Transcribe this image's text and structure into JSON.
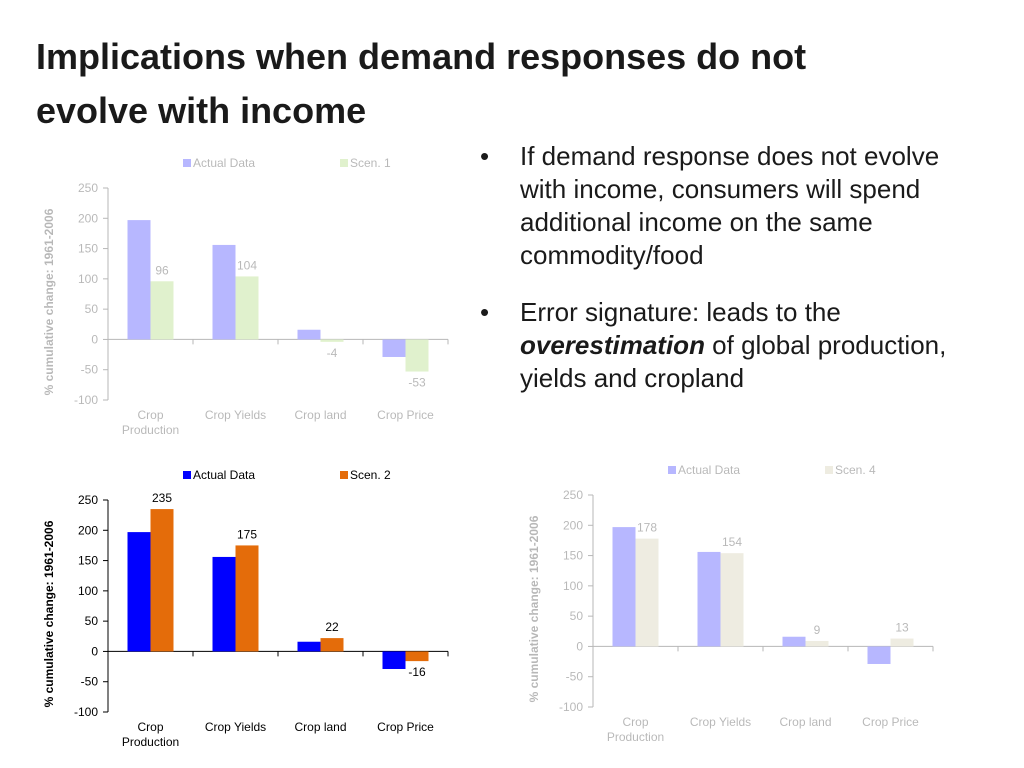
{
  "slide": {
    "title_line1": "Implications when demand responses do not",
    "title_line2": "evolve with income",
    "bullets": [
      "If demand response does not evolve with income, consumers will spend additional income on the same commodity/food",
      {
        "before": "Error signature: leads to the ",
        "emphasis": "overestimation",
        "after": " of global production, yields and cropland"
      }
    ]
  },
  "chart_data": [
    {
      "type": "bar",
      "categories": [
        [
          "Crop",
          "Production"
        ],
        [
          "Crop Yields"
        ],
        [
          "Crop land"
        ],
        [
          "Crop Price"
        ]
      ],
      "series": [
        {
          "name": "Actual Data",
          "values": [
            197,
            156,
            16,
            -29
          ],
          "color": "#0000ff"
        },
        {
          "name": "Scen. 1",
          "values": [
            96,
            104,
            -4,
            -53
          ],
          "color": "#92d050",
          "labels": [
            "96",
            "104",
            "-4",
            "-53"
          ]
        }
      ],
      "ylabel": "% cumulative change: 1961-2006",
      "ylim": [
        -100,
        250
      ],
      "yticks": [
        250,
        200,
        150,
        100,
        50,
        0,
        -50,
        -100
      ],
      "legend": "top",
      "faded": true
    },
    {
      "type": "bar",
      "categories": [
        [
          "Crop",
          "Production"
        ],
        [
          "Crop Yields"
        ],
        [
          "Crop land"
        ],
        [
          "Crop Price"
        ]
      ],
      "series": [
        {
          "name": "Actual Data",
          "values": [
            197,
            156,
            16,
            -29
          ],
          "color": "#0000ff"
        },
        {
          "name": "Scen. 2",
          "values": [
            235,
            175,
            22,
            -16
          ],
          "color": "#e46c0a",
          "labels": [
            "235",
            "175",
            "22",
            "-16"
          ]
        }
      ],
      "ylabel": "% cumulative change: 1961-2006",
      "ylim": [
        -100,
        250
      ],
      "yticks": [
        250,
        200,
        150,
        100,
        50,
        0,
        -50,
        -100
      ],
      "legend": "top",
      "faded": false
    },
    {
      "type": "bar",
      "categories": [
        [
          "Crop",
          "Production"
        ],
        [
          "Crop Yields"
        ],
        [
          "Crop land"
        ],
        [
          "Crop Price"
        ]
      ],
      "series": [
        {
          "name": "Actual Data",
          "values": [
            197,
            156,
            16,
            -29
          ],
          "color": "#0000ff"
        },
        {
          "name": "Scen. 4",
          "values": [
            178,
            154,
            9,
            13
          ],
          "color": "#c4bd97",
          "labels": [
            "178",
            "154",
            "9",
            "13"
          ]
        }
      ],
      "ylabel": "% cumulative change: 1961-2006",
      "ylim": [
        -100,
        250
      ],
      "yticks": [
        250,
        200,
        150,
        100,
        50,
        0,
        -50,
        -100
      ],
      "legend": "top",
      "faded": true
    }
  ]
}
